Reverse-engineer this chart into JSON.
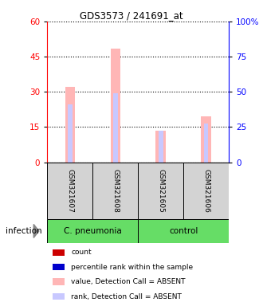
{
  "title": "GDS3573 / 241691_at",
  "samples": [
    "GSM321607",
    "GSM321608",
    "GSM321605",
    "GSM321606"
  ],
  "group_labels": [
    "C. pneumonia",
    "control"
  ],
  "bar_color_absent": "#FFB6B6",
  "rank_color_absent": "#C8C8FF",
  "left_ticks": [
    0,
    15,
    30,
    45,
    60
  ],
  "right_tick_labels": [
    "0",
    "25",
    "50",
    "75",
    "100%"
  ],
  "ylim_left": [
    0,
    60
  ],
  "ylim_right": [
    0,
    100
  ],
  "value_absent": [
    32.0,
    48.5,
    13.5,
    19.5
  ],
  "rank_absent": [
    24.5,
    29.5,
    13.5,
    16.5
  ],
  "legend_items": [
    {
      "color": "#CC0000",
      "label": "count"
    },
    {
      "color": "#0000CC",
      "label": "percentile rank within the sample"
    },
    {
      "color": "#FFB6B6",
      "label": "value, Detection Call = ABSENT"
    },
    {
      "color": "#C8C8FF",
      "label": "rank, Detection Call = ABSENT"
    }
  ],
  "pink_bar_width": 0.22,
  "blue_bar_width": 0.1,
  "fig_width": 3.3,
  "fig_height": 3.84
}
